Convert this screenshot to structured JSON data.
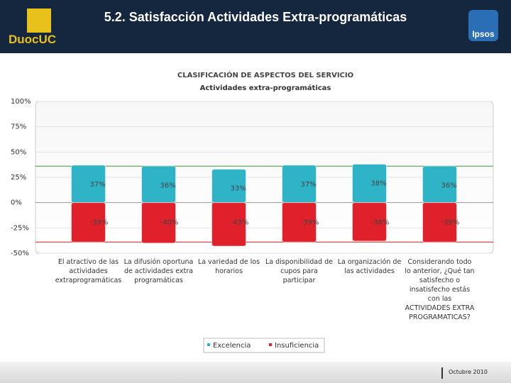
{
  "header": {
    "title": "5.2. Satisfacción Actividades Extra-programáticas",
    "logo_left": "DuocUC",
    "logo_right": "Ipsos"
  },
  "chart_data": {
    "type": "bar",
    "title": "CLASIFICACIÓN DE ASPECTOS DEL SERVICIO",
    "subtitle": "Actividades extra-programáticas",
    "categories": [
      "El atractivo de las actividades extraprogramáticas",
      "La difusión oportuna de actividades extra programáticas",
      "La variedad de los horarios",
      "La disponibilidad de cupos para participar",
      "La organización de las actividades",
      "Considerando todo lo anterior, ¿Qué tan satisfecho o insatisfecho estás con las ACTIVIDADES EXTRA PROGRAMATICAS?"
    ],
    "series": [
      {
        "name": "Excelencia",
        "color": "#2fb3c6",
        "values": [
          37,
          36,
          33,
          37,
          38,
          36
        ],
        "value_labels": [
          "37%",
          "36%",
          "33%",
          "37%",
          "38%",
          "36%"
        ]
      },
      {
        "name": "Insuficiencia",
        "color": "#e0202a",
        "values": [
          -39,
          -40,
          -43,
          -39,
          -38,
          -39
        ],
        "value_labels": [
          "-39%",
          "-40%",
          "-43%",
          "-39%",
          "-38%",
          "-39%"
        ]
      }
    ],
    "ylim": [
      -50,
      100
    ],
    "yticks": [
      {
        "value": 100,
        "label": "100%"
      },
      {
        "value": 75,
        "label": "75%"
      },
      {
        "value": 50,
        "label": "50%"
      },
      {
        "value": 25,
        "label": "25%"
      },
      {
        "value": 0,
        "label": "0%"
      },
      {
        "value": -25,
        "label": "-25%"
      },
      {
        "value": -50,
        "label": "-50%"
      }
    ],
    "reference_lines": [
      {
        "value": 36,
        "color": "#3a9a3a"
      },
      {
        "value": -39,
        "color": "#c02020"
      }
    ],
    "grid": true
  },
  "footer": {
    "date": "Octubre 2010"
  }
}
